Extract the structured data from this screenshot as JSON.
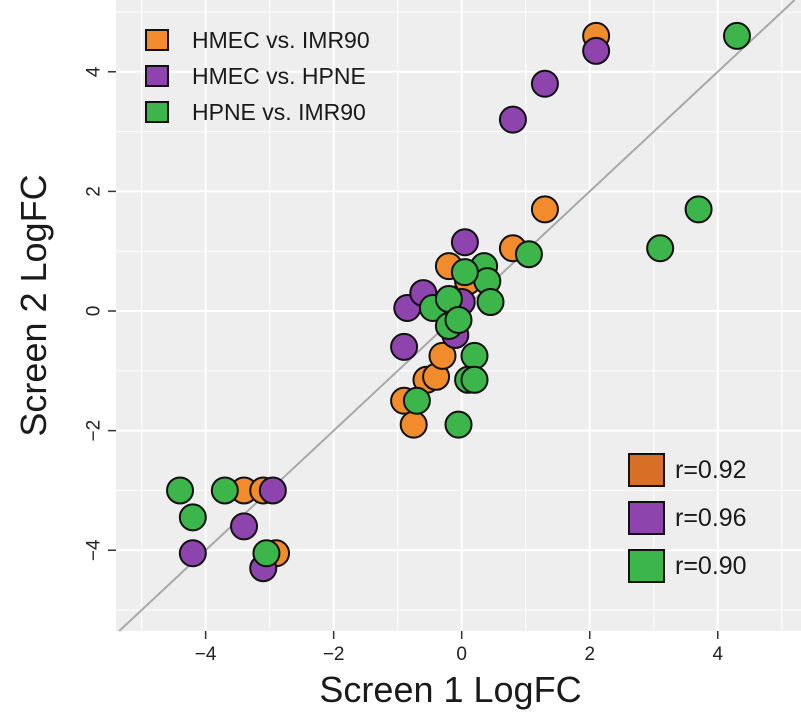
{
  "chart_data": {
    "type": "scatter",
    "xlabel": "Screen 1 LogFC",
    "ylabel": "Screen 2 LogFC",
    "xlim": [
      -5.4,
      5.3
    ],
    "ylim": [
      -5.35,
      5.2
    ],
    "x_ticks": [
      -4,
      -2,
      0,
      2,
      4
    ],
    "y_ticks": [
      -4,
      -2,
      0,
      2,
      4
    ],
    "x_tick_labels": [
      "−4",
      "−2",
      "0",
      "2",
      "4"
    ],
    "y_tick_labels": [
      "−4",
      "−2",
      "0",
      "2",
      "4"
    ],
    "grid": true,
    "background": "#eeeeee",
    "diagonal": "y = x",
    "legend_position": "top-left",
    "correlation_legend_position": "bottom-right",
    "series": [
      {
        "name": "HMEC vs. IMR90",
        "color": "#f28b2c",
        "correlation": "r=0.92",
        "correlation_color": "#d86f27",
        "points": [
          [
            2.1,
            4.6
          ],
          [
            1.3,
            1.7
          ],
          [
            0.8,
            1.05
          ],
          [
            -3.4,
            -3.0
          ],
          [
            -3.1,
            -3.0
          ],
          [
            -2.9,
            -4.05
          ],
          [
            -0.9,
            -1.5
          ],
          [
            -0.75,
            -1.9
          ],
          [
            -0.55,
            -1.15
          ],
          [
            -0.4,
            -1.1
          ],
          [
            -0.3,
            -0.75
          ],
          [
            -0.2,
            0.75
          ],
          [
            -0.05,
            0.2
          ],
          [
            0.1,
            0.5
          ]
        ]
      },
      {
        "name": "HMEC vs. HPNE",
        "color": "#8e44ad",
        "correlation": "r=0.96",
        "correlation_color": "#8e44ad",
        "points": [
          [
            2.1,
            4.35
          ],
          [
            1.3,
            3.8
          ],
          [
            0.8,
            3.2
          ],
          [
            0.05,
            1.15
          ],
          [
            -0.85,
            0.05
          ],
          [
            -0.6,
            0.3
          ],
          [
            -0.1,
            -0.4
          ],
          [
            0.0,
            0.15
          ],
          [
            -0.9,
            -0.6
          ],
          [
            -4.2,
            -4.05
          ],
          [
            -3.4,
            -3.6
          ],
          [
            -3.1,
            -4.3
          ],
          [
            -2.95,
            -3.0
          ]
        ]
      },
      {
        "name": "HPNE vs. IMR90",
        "color": "#3cb54a",
        "correlation": "r=0.90",
        "correlation_color": "#3cb54a",
        "points": [
          [
            4.3,
            4.6
          ],
          [
            3.7,
            1.7
          ],
          [
            3.1,
            1.05
          ],
          [
            1.05,
            0.95
          ],
          [
            0.35,
            0.75
          ],
          [
            0.4,
            0.5
          ],
          [
            0.45,
            0.15
          ],
          [
            0.05,
            0.65
          ],
          [
            -0.45,
            0.05
          ],
          [
            -0.2,
            0.2
          ],
          [
            -0.2,
            -0.25
          ],
          [
            -0.05,
            -0.15
          ],
          [
            0.2,
            -0.75
          ],
          [
            0.1,
            -1.15
          ],
          [
            0.2,
            -1.15
          ],
          [
            -0.7,
            -1.5
          ],
          [
            -0.05,
            -1.9
          ],
          [
            -4.4,
            -3.0
          ],
          [
            -4.2,
            -3.45
          ],
          [
            -3.7,
            -3.0
          ],
          [
            -3.05,
            -4.05
          ]
        ]
      }
    ]
  }
}
